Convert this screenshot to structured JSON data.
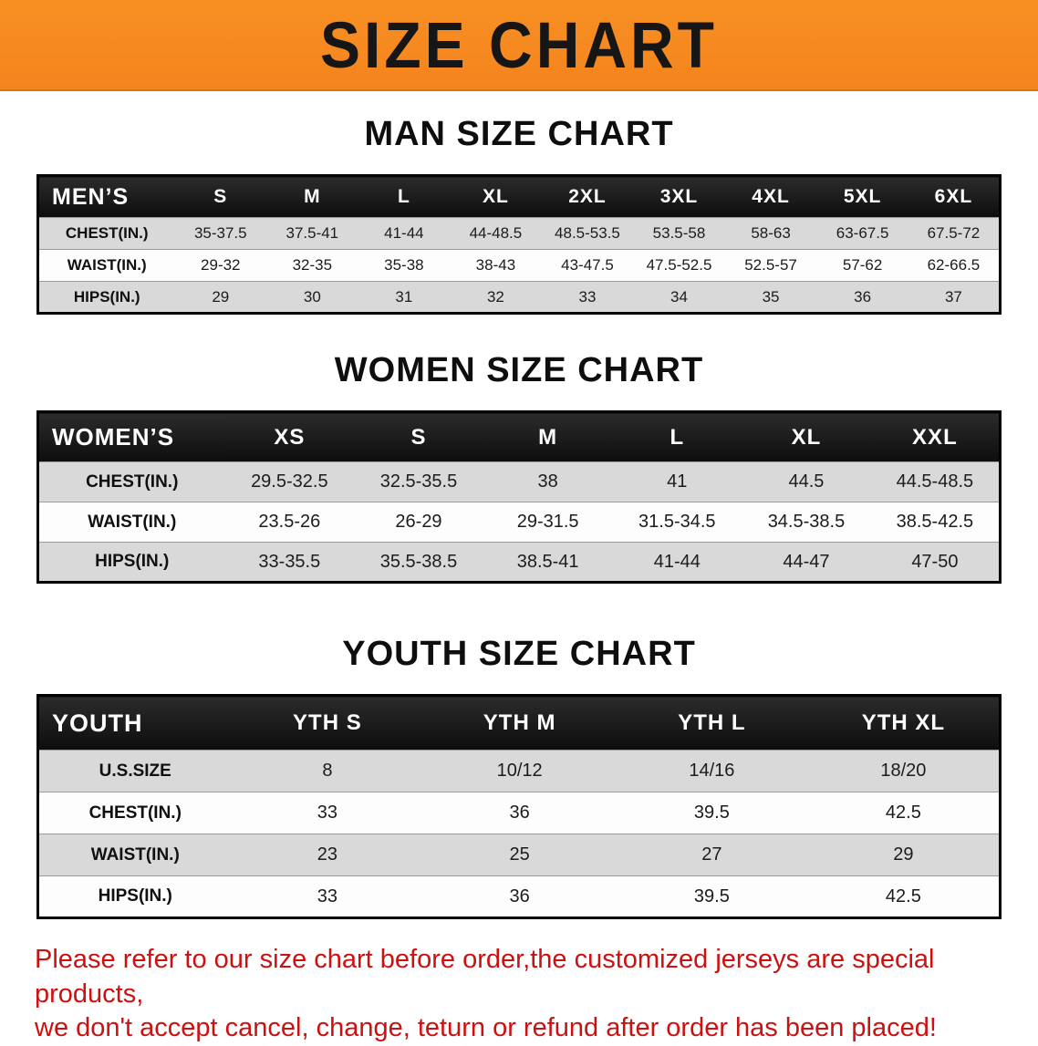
{
  "banner": {
    "title": "SIZE CHART"
  },
  "disclaimer": {
    "line1": "Please refer to our size chart before order,the customized jerseys are special products,",
    "line2": "we don't accept cancel, change, teturn or refund after order has been placed!"
  },
  "colors": {
    "banner_bg": "#F5841E",
    "table_header_bg": "#0D0D0D",
    "row_alt_bg": "#D9D9D9",
    "disclaimer_text": "#CC1111"
  },
  "chart_data": [
    {
      "type": "table",
      "title": "MAN SIZE CHART",
      "columns": [
        "MEN’S",
        "S",
        "M",
        "L",
        "XL",
        "2XL",
        "3XL",
        "4XL",
        "5XL",
        "6XL"
      ],
      "rows": [
        [
          "CHEST(IN.)",
          "35-37.5",
          "37.5-41",
          "41-44",
          "44-48.5",
          "48.5-53.5",
          "53.5-58",
          "58-63",
          "63-67.5",
          "67.5-72"
        ],
        [
          "WAIST(IN.)",
          "29-32",
          "32-35",
          "35-38",
          "38-43",
          "43-47.5",
          "47.5-52.5",
          "52.5-57",
          "57-62",
          "62-66.5"
        ],
        [
          "HIPS(IN.)",
          "29",
          "30",
          "31",
          "32",
          "33",
          "34",
          "35",
          "36",
          "37"
        ]
      ]
    },
    {
      "type": "table",
      "title": "WOMEN SIZE CHART",
      "columns": [
        "WOMEN’S",
        "XS",
        "S",
        "M",
        "L",
        "XL",
        "XXL"
      ],
      "rows": [
        [
          "CHEST(IN.)",
          "29.5-32.5",
          "32.5-35.5",
          "38",
          "41",
          "44.5",
          "44.5-48.5"
        ],
        [
          "WAIST(IN.)",
          "23.5-26",
          "26-29",
          "29-31.5",
          "31.5-34.5",
          "34.5-38.5",
          "38.5-42.5"
        ],
        [
          "HIPS(IN.)",
          "33-35.5",
          "35.5-38.5",
          "38.5-41",
          "41-44",
          "44-47",
          "47-50"
        ]
      ]
    },
    {
      "type": "table",
      "title": "YOUTH SIZE CHART",
      "columns": [
        "YOUTH",
        "YTH S",
        "YTH M",
        "YTH L",
        "YTH XL"
      ],
      "rows": [
        [
          "U.S.SIZE",
          "8",
          "10/12",
          "14/16",
          "18/20"
        ],
        [
          "CHEST(IN.)",
          "33",
          "36",
          "39.5",
          "42.5"
        ],
        [
          "WAIST(IN.)",
          "23",
          "25",
          "27",
          "29"
        ],
        [
          "HIPS(IN.)",
          "33",
          "36",
          "39.5",
          "42.5"
        ]
      ]
    }
  ]
}
